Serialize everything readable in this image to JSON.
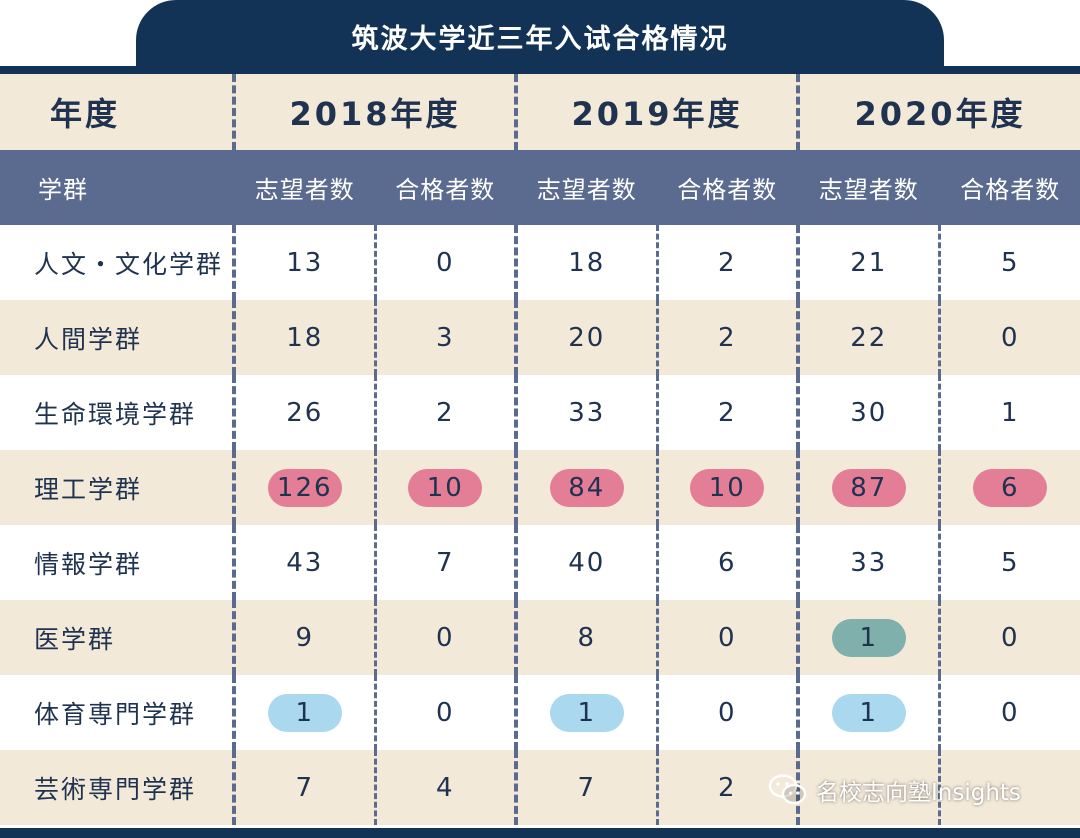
{
  "title": "筑波大学近三年入试合格情况",
  "header": {
    "year_label": "年度",
    "years": [
      "2018年度",
      "2019年度",
      "2020年度"
    ],
    "group_label": "学群",
    "applicants_label": "志望者数",
    "passers_label": "合格者数"
  },
  "rows": [
    {
      "name": "人文・文化学群",
      "values": [
        "13",
        "0",
        "18",
        "2",
        "21",
        "5"
      ]
    },
    {
      "name": "人間学群",
      "values": [
        "18",
        "3",
        "20",
        "2",
        "22",
        "0"
      ]
    },
    {
      "name": "生命環境学群",
      "values": [
        "26",
        "2",
        "33",
        "2",
        "30",
        "1"
      ]
    },
    {
      "name": "理工学群",
      "values": [
        "126",
        "10",
        "84",
        "10",
        "87",
        "6"
      ]
    },
    {
      "name": "情報学群",
      "values": [
        "43",
        "7",
        "40",
        "6",
        "33",
        "5"
      ]
    },
    {
      "name": "医学群",
      "values": [
        "9",
        "0",
        "8",
        "0",
        "1",
        "0"
      ]
    },
    {
      "name": "体育専門学群",
      "values": [
        "1",
        "0",
        "1",
        "0",
        "1",
        "0"
      ]
    },
    {
      "name": "芸術専門学群",
      "values": [
        "7",
        "4",
        "7",
        "2",
        "",
        ""
      ]
    }
  ],
  "footer": {
    "brand": "名校志向塾Insights",
    "icon": "wechat-icon"
  },
  "colors": {
    "navy": "#123356",
    "header_blue": "#5b6b8f",
    "beige": "#f2e9d9",
    "highlight_pink": "#e47d96",
    "highlight_teal": "#7fb0ab",
    "highlight_blue": "#a9d8ef"
  }
}
